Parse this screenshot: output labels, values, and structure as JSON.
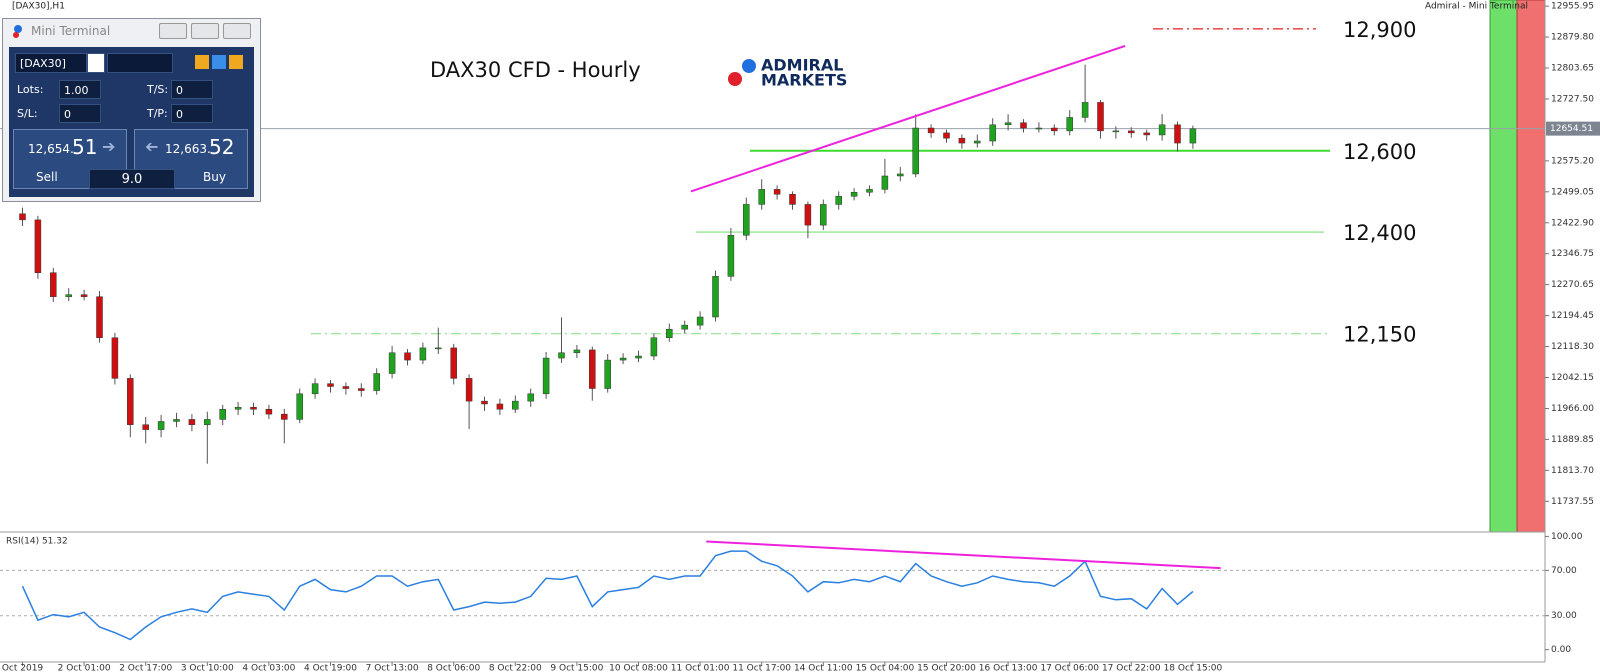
{
  "window": {
    "chart_caption": "[DAX30],H1",
    "indicator_caption": "Admiral - Mini Terminal"
  },
  "logo": {
    "line1": "ADMIRAL",
    "line2": "MARKETS"
  },
  "terminal": {
    "title": "Mini Terminal",
    "symbol": "[DAX30]",
    "lots_label": "Lots:",
    "lots": "1.00",
    "ts_label": "T/S:",
    "ts": "0",
    "sl_label": "S/L:",
    "sl": "0",
    "tp_label": "T/P:",
    "tp": "0",
    "sell_price_main": "12,654.",
    "sell_price_pips": "51",
    "buy_price_main": "12,663.",
    "buy_price_pips": "52",
    "sell_label": "Sell",
    "spread": "9.0",
    "buy_label": "Buy"
  },
  "chart_data": [
    {
      "type": "candlestick",
      "title": "DAX30 CFD - Hourly",
      "open": [
        12445,
        12430,
        12300,
        12241,
        12246,
        12241,
        12140,
        12040,
        11926,
        11914,
        11934,
        11939,
        11926,
        11939,
        11964,
        11969,
        11964,
        11952,
        11939,
        12002,
        12027,
        12020,
        12015,
        12010,
        12052,
        12103,
        12085,
        12115,
        12115,
        12040,
        11984,
        11977,
        11964,
        11984,
        12002,
        12090,
        12103,
        12110,
        12015,
        12085,
        12090,
        12095,
        12140,
        12161,
        12171,
        12191,
        12291,
        12392,
        12468,
        12505,
        12493,
        12468,
        12417,
        12468,
        12488,
        12498,
        12505,
        12538,
        12543,
        12656,
        12644,
        12631,
        12619,
        12624,
        12664,
        12669,
        12656,
        12656,
        12649,
        12682,
        12719,
        12649,
        12649,
        12644,
        12639,
        12664,
        12619
      ],
      "high": [
        12460,
        12440,
        12312,
        12262,
        12258,
        12255,
        12152,
        12050,
        11945,
        11950,
        11955,
        11952,
        11958,
        11975,
        11982,
        11980,
        11975,
        11965,
        12015,
        12040,
        12036,
        12030,
        12028,
        12065,
        12120,
        12112,
        12128,
        12165,
        12125,
        12050,
        11995,
        11990,
        11998,
        12015,
        12105,
        12190,
        12122,
        12118,
        12100,
        12102,
        12108,
        12150,
        12175,
        12182,
        12205,
        12305,
        12410,
        12485,
        12530,
        12515,
        12500,
        12475,
        12480,
        12500,
        12508,
        12515,
        12580,
        12560,
        12690,
        12665,
        12652,
        12640,
        12640,
        12680,
        12690,
        12678,
        12670,
        12665,
        12700,
        12812,
        12725,
        12660,
        12658,
        12652,
        12690,
        12672,
        12662
      ],
      "low": [
        12415,
        12285,
        12228,
        12230,
        12232,
        12128,
        12025,
        11895,
        11880,
        11895,
        11920,
        11910,
        11830,
        11925,
        11950,
        11950,
        11940,
        11880,
        11930,
        11990,
        12005,
        12000,
        11995,
        12000,
        12040,
        12072,
        12075,
        12100,
        12025,
        11915,
        11960,
        11950,
        11955,
        11970,
        11990,
        12078,
        12090,
        11985,
        12005,
        12075,
        12080,
        12085,
        12130,
        12150,
        12160,
        12180,
        12280,
        12380,
        12455,
        12480,
        12455,
        12385,
        12405,
        12455,
        12478,
        12488,
        12495,
        12525,
        12535,
        12632,
        12620,
        12605,
        12608,
        12612,
        12650,
        12645,
        12645,
        12638,
        12638,
        12670,
        12630,
        12630,
        12632,
        12625,
        12625,
        12598,
        12605
      ],
      "close": [
        12430,
        12300,
        12241,
        12246,
        12241,
        12140,
        12040,
        11926,
        11914,
        11934,
        11939,
        11926,
        11939,
        11964,
        11969,
        11964,
        11952,
        11939,
        12002,
        12027,
        12020,
        12015,
        12010,
        12052,
        12103,
        12085,
        12115,
        12115,
        12040,
        11984,
        11977,
        11964,
        11984,
        12002,
        12090,
        12103,
        12110,
        12015,
        12085,
        12090,
        12095,
        12140,
        12161,
        12171,
        12191,
        12291,
        12392,
        12468,
        12505,
        12493,
        12468,
        12417,
        12468,
        12488,
        12498,
        12505,
        12538,
        12543,
        12656,
        12644,
        12631,
        12619,
        12624,
        12664,
        12669,
        12656,
        12656,
        12649,
        12682,
        12719,
        12649,
        12649,
        12644,
        12639,
        12664,
        12619,
        12654
      ],
      "up_color": "#1fa31f",
      "down_color": "#d01010",
      "ylim": [
        11662,
        12971
      ],
      "yticks": [
        12955.95,
        {
          "value": 12879.8,
          "label": "12879.80"
        },
        12803.65,
        {
          "value": 12727.5,
          "label": "12727.50"
        },
        {
          "value": 12575.2,
          "label": "12575.20"
        },
        12499.05,
        {
          "value": 12422.9,
          "label": "12422.90"
        },
        12346.75,
        12270.65,
        12194.45,
        {
          "value": 12118.3,
          "label": "12118.30"
        },
        12042.15,
        {
          "value": 11966.0,
          "label": "11966.00"
        },
        11889.85,
        {
          "value": 11813.7,
          "label": "11813.70"
        },
        11737.55
      ],
      "current_price": 12654.51,
      "levels": [
        {
          "value": 12900,
          "label": "12,900",
          "color": "#e0201c",
          "style": "dashdot"
        },
        {
          "value": 12600,
          "label": "12,600",
          "color": "#3ddc2c",
          "style": "solid"
        },
        {
          "value": 12400,
          "label": "12,400",
          "color": "#7ee07a",
          "style": "thin"
        },
        {
          "value": 12150,
          "label": "12,150",
          "color": "#90e090",
          "style": "dashdot"
        }
      ],
      "trendlines": [
        {
          "from": [
            43.4,
            12500
          ],
          "to": [
            71.6,
            12858
          ],
          "color": "#ee22dd"
        }
      ]
    },
    {
      "type": "line",
      "title": "RSI(14) 51.32",
      "categories": [
        "Oct 2019",
        null,
        null,
        null,
        "2 Oct 01:00",
        null,
        null,
        null,
        "2 Oct 17:00",
        null,
        null,
        null,
        "3 Oct 10:00",
        null,
        null,
        null,
        "4 Oct 03:00",
        null,
        null,
        null,
        "4 Oct 19:00",
        null,
        null,
        null,
        "7 Oct 13:00",
        null,
        null,
        null,
        "8 Oct 06:00",
        null,
        null,
        null,
        "8 Oct 22:00",
        null,
        null,
        null,
        "9 Oct 15:00",
        null,
        null,
        null,
        "10 Oct 08:00",
        null,
        null,
        null,
        "11 Oct 01:00",
        null,
        null,
        null,
        "11 Oct 17:00",
        null,
        null,
        null,
        "14 Oct 11:00",
        null,
        null,
        null,
        "15 Oct 04:00",
        null,
        null,
        null,
        "15 Oct 20:00",
        null,
        null,
        null,
        "16 Oct 13:00",
        null,
        null,
        null,
        "17 Oct 06:00",
        null,
        null,
        null,
        "17 Oct 22:00",
        null,
        null,
        null,
        "18 Oct 15:00"
      ],
      "values": [
        56,
        26,
        31,
        29,
        33,
        20,
        15,
        9,
        20,
        29,
        33,
        36,
        33,
        47,
        51,
        49,
        47,
        35,
        56,
        62,
        53,
        51,
        56,
        65,
        65,
        56,
        60,
        62,
        35,
        38,
        42,
        41,
        42,
        47,
        63,
        62,
        65,
        38,
        51,
        53,
        55,
        65,
        62,
        65,
        65,
        83,
        87,
        87,
        78,
        74,
        65,
        51,
        60,
        59,
        62,
        60,
        65,
        60,
        76,
        65,
        60,
        56,
        59,
        65,
        62,
        60,
        59,
        56,
        65,
        78,
        47,
        44,
        45,
        36,
        54,
        40,
        51.32
      ],
      "color": "#2a7fe0",
      "ylim": [
        -10,
        103
      ],
      "yticks": [
        {
          "value": 100,
          "label": "100.00"
        },
        {
          "value": 70,
          "label": "70.00"
        },
        {
          "value": 30,
          "label": "30.00"
        },
        {
          "value": 0,
          "label": "0.00"
        }
      ],
      "trendlines": [
        {
          "from": [
            44.4,
            95.5
          ],
          "to": [
            77.8,
            72
          ],
          "color": "#ee22dd"
        }
      ]
    }
  ]
}
